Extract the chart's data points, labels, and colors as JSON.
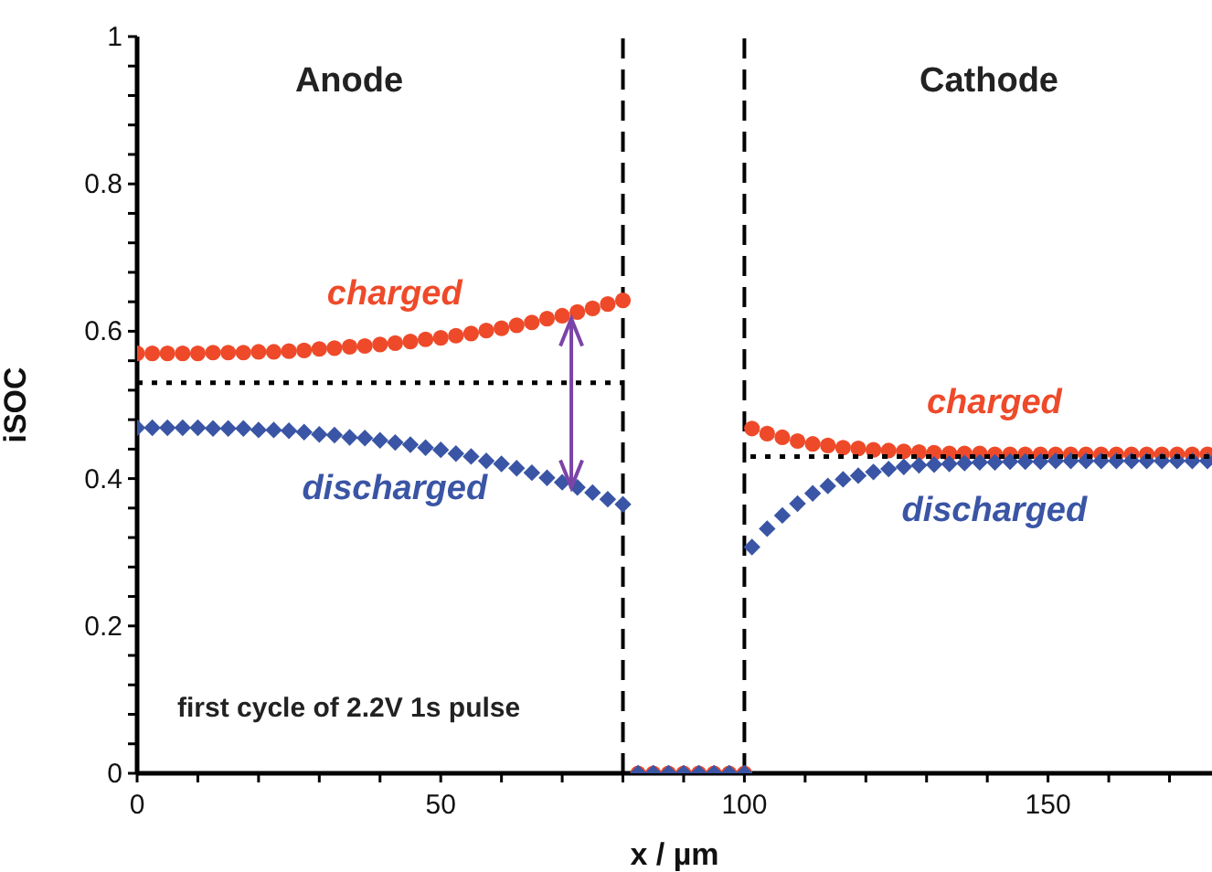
{
  "chart_data": {
    "type": "scatter",
    "xlabel": "x / µm",
    "ylabel": "iSOC",
    "xlim": [
      0,
      177
    ],
    "ylim": [
      0,
      1
    ],
    "xticks": [
      0,
      {
        "value": 10,
        "label": null
      },
      {
        "value": 20,
        "label": null
      },
      {
        "value": 30,
        "label": null
      },
      {
        "value": 40,
        "label": null
      },
      50,
      {
        "value": 60,
        "label": null
      },
      {
        "value": 70,
        "label": null
      },
      {
        "value": 80,
        "label": null
      },
      {
        "value": 90,
        "label": null
      },
      100,
      {
        "value": 110,
        "label": null
      },
      {
        "value": 120,
        "label": null
      },
      {
        "value": 130,
        "label": null
      },
      {
        "value": 140,
        "label": null
      },
      150,
      {
        "value": 160,
        "label": null
      },
      {
        "value": 170,
        "label": null
      }
    ],
    "yticks": [
      0,
      {
        "value": 0.04,
        "label": null
      },
      {
        "value": 0.08,
        "label": null
      },
      {
        "value": 0.12,
        "label": null
      },
      {
        "value": 0.16,
        "label": null
      },
      0.2,
      {
        "value": 0.24,
        "label": null
      },
      {
        "value": 0.28,
        "label": null
      },
      {
        "value": 0.32,
        "label": null
      },
      {
        "value": 0.36,
        "label": null
      },
      0.4,
      {
        "value": 0.44,
        "label": null
      },
      {
        "value": 0.48,
        "label": null
      },
      {
        "value": 0.52,
        "label": null
      },
      {
        "value": 0.56,
        "label": null
      },
      0.6,
      {
        "value": 0.64,
        "label": null
      },
      {
        "value": 0.68,
        "label": null
      },
      {
        "value": 0.72,
        "label": null
      },
      {
        "value": 0.76,
        "label": null
      },
      0.8,
      {
        "value": 0.84,
        "label": null
      },
      {
        "value": 0.88,
        "label": null
      },
      {
        "value": 0.92,
        "label": null
      },
      {
        "value": 0.96,
        "label": null
      },
      1
    ],
    "annotations": [
      "Anode",
      "Cathode",
      "first cycle of 2.2V 1s pulse"
    ],
    "ref_lines": [
      {
        "axis": "x",
        "value": 80,
        "line_style": "dashed",
        "color": "#000000"
      },
      {
        "axis": "x",
        "value": 100,
        "line_style": "dashed",
        "color": "#000000"
      }
    ],
    "series": [
      {
        "name": "charged",
        "color": "#ee4a2a",
        "marker": "circle",
        "x": [
          0,
          2.5,
          5,
          7.5,
          10,
          12.5,
          15,
          17.5,
          20,
          22.5,
          25,
          27.5,
          30,
          32.5,
          35,
          37.5,
          40,
          42.5,
          45,
          47.5,
          50,
          52.5,
          55,
          57.5,
          60,
          62.5,
          65,
          67.5,
          70,
          72.5,
          75,
          77.5,
          80
        ],
        "values": [
          0.57,
          0.57,
          0.57,
          0.57,
          0.57,
          0.571,
          0.571,
          0.571,
          0.572,
          0.572,
          0.573,
          0.574,
          0.576,
          0.577,
          0.579,
          0.58,
          0.582,
          0.584,
          0.586,
          0.589,
          0.591,
          0.594,
          0.597,
          0.601,
          0.604,
          0.608,
          0.612,
          0.617,
          0.621,
          0.626,
          0.631,
          0.637,
          0.642
        ]
      },
      {
        "name": "discharged",
        "color": "#3a55a5",
        "marker": "diamond",
        "x": [
          0,
          2.5,
          5,
          7.5,
          10,
          12.5,
          15,
          17.5,
          20,
          22.5,
          25,
          27.5,
          30,
          32.5,
          35,
          37.5,
          40,
          42.5,
          45,
          47.5,
          50,
          52.5,
          55,
          57.5,
          60,
          62.5,
          65,
          67.5,
          70,
          72.5,
          75,
          77.5,
          80
        ],
        "values": [
          0.469,
          0.469,
          0.469,
          0.469,
          0.469,
          0.468,
          0.468,
          0.468,
          0.466,
          0.466,
          0.465,
          0.463,
          0.46,
          0.459,
          0.456,
          0.455,
          0.452,
          0.449,
          0.446,
          0.442,
          0.439,
          0.434,
          0.43,
          0.424,
          0.42,
          0.414,
          0.408,
          0.401,
          0.395,
          0.388,
          0.381,
          0.372,
          0.365
        ]
      },
      {
        "color": "#ee4a2a",
        "marker": "circle",
        "x": [
          82.5,
          85,
          87.5,
          90,
          92.5,
          95,
          97.5,
          100
        ],
        "values": [
          0,
          0,
          0,
          0,
          0,
          0,
          0,
          0
        ]
      },
      {
        "color": "#3a55a5",
        "marker": "diamond",
        "x": [
          82.5,
          85,
          87.5,
          90,
          92.5,
          95,
          97.5,
          100
        ],
        "values": [
          0,
          0,
          0,
          0,
          0,
          0,
          0,
          0
        ]
      },
      {
        "name": "charged",
        "color": "#ee4a2a",
        "marker": "circle",
        "x": [
          101.25,
          103.75,
          106.25,
          108.75,
          111.25,
          113.75,
          116.25,
          118.75,
          121.25,
          123.75,
          126.25,
          128.75,
          131.25,
          133.75,
          136.25,
          138.75,
          141.25,
          143.75,
          146.25,
          148.75,
          151.25,
          153.75,
          156.25,
          158.75,
          161.25,
          163.75,
          166.25,
          168.75,
          171.25,
          173.75,
          176.25
        ],
        "values": [
          0.468,
          0.461,
          0.456,
          0.451,
          0.447,
          0.445,
          0.442,
          0.441,
          0.439,
          0.438,
          0.437,
          0.436,
          0.435,
          0.434,
          0.434,
          0.434,
          0.433,
          0.433,
          0.433,
          0.433,
          0.433,
          0.433,
          0.433,
          0.433,
          0.433,
          0.433,
          0.433,
          0.433,
          0.433,
          0.433,
          0.433
        ]
      },
      {
        "name": "discharged",
        "color": "#3a55a5",
        "marker": "diamond",
        "x": [
          101.25,
          103.75,
          106.25,
          108.75,
          111.25,
          113.75,
          116.25,
          118.75,
          121.25,
          123.75,
          126.25,
          128.75,
          131.25,
          133.75,
          136.25,
          138.75,
          141.25,
          143.75,
          146.25,
          148.75,
          151.25,
          153.75,
          156.25,
          158.75,
          161.25,
          163.75,
          166.25,
          168.75,
          171.25,
          173.75,
          176.25
        ],
        "values": [
          0.307,
          0.332,
          0.35,
          0.366,
          0.38,
          0.39,
          0.399,
          0.404,
          0.409,
          0.413,
          0.416,
          0.418,
          0.419,
          0.42,
          0.421,
          0.422,
          0.422,
          0.423,
          0.423,
          0.423,
          0.424,
          0.424,
          0.424,
          0.424,
          0.424,
          0.424,
          0.424,
          0.424,
          0.424,
          0.424,
          0.424
        ]
      },
      {
        "type": "line",
        "color": "#000000",
        "line_style": "dotted",
        "x": [
          0,
          80
        ],
        "values": [
          0.53,
          0.53
        ]
      },
      {
        "type": "line",
        "color": "#000000",
        "line_style": "dotted",
        "x": [
          101,
          177
        ],
        "values": [
          0.43,
          0.43
        ]
      }
    ]
  }
}
